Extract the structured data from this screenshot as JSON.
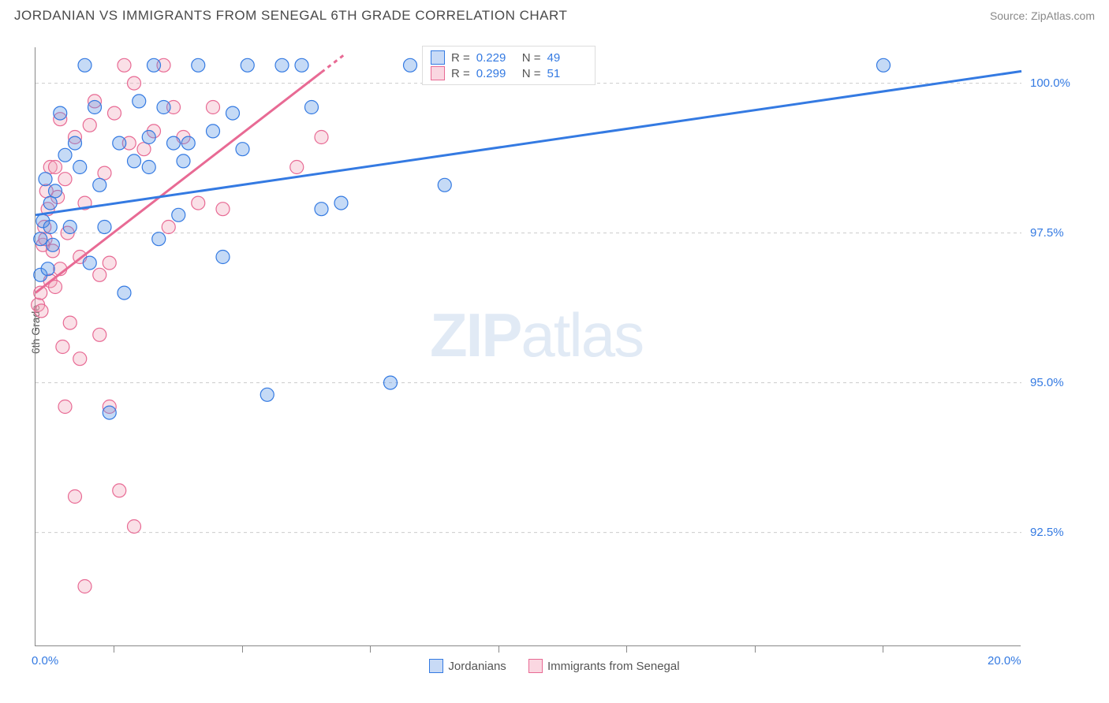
{
  "header": {
    "title": "JORDANIAN VS IMMIGRANTS FROM SENEGAL 6TH GRADE CORRELATION CHART",
    "source": "Source: ZipAtlas.com"
  },
  "watermark": {
    "left": "ZIP",
    "right": "atlas"
  },
  "chart": {
    "type": "scatter",
    "ylabel": "6th Grade",
    "background_color": "#ffffff",
    "grid_color": "#cccccc",
    "axis_color": "#888888",
    "xlim": [
      0,
      20
    ],
    "ylim": [
      90.6,
      100.6
    ],
    "yticks": [
      {
        "value": 92.5,
        "label": "92.5%"
      },
      {
        "value": 95.0,
        "label": "95.0%"
      },
      {
        "value": 97.5,
        "label": "97.5%"
      },
      {
        "value": 100.0,
        "label": "100.0%"
      }
    ],
    "xticks_lines": [
      1.6,
      4.2,
      6.8,
      9.4,
      12.0,
      14.6,
      17.2
    ],
    "xtick_labels": [
      {
        "value": 0.0,
        "label": "0.0%"
      },
      {
        "value": 20.0,
        "label": "20.0%"
      }
    ],
    "marker_radius": 8.5,
    "marker_fill_opacity": 0.35,
    "marker_stroke_width": 1.2,
    "series": {
      "jordanians": {
        "label": "Jordanians",
        "color": "#5a95e6",
        "stroke": "#347ae2",
        "R": "0.229",
        "N": "49",
        "regression": {
          "x1": 0,
          "y1": 97.8,
          "x2": 20,
          "y2": 100.2,
          "width": 3
        },
        "points": [
          [
            0.1,
            97.4
          ],
          [
            0.1,
            96.8
          ],
          [
            0.15,
            97.7
          ],
          [
            0.2,
            98.4
          ],
          [
            0.25,
            96.9
          ],
          [
            0.3,
            97.6
          ],
          [
            0.3,
            98.0
          ],
          [
            0.35,
            97.3
          ],
          [
            0.4,
            98.2
          ],
          [
            0.5,
            99.5
          ],
          [
            0.6,
            98.8
          ],
          [
            0.7,
            97.6
          ],
          [
            0.8,
            99.0
          ],
          [
            0.9,
            98.6
          ],
          [
            1.0,
            100.3
          ],
          [
            1.1,
            97.0
          ],
          [
            1.2,
            99.6
          ],
          [
            1.3,
            98.3
          ],
          [
            1.4,
            97.6
          ],
          [
            1.5,
            94.5
          ],
          [
            1.7,
            99.0
          ],
          [
            1.8,
            96.5
          ],
          [
            2.0,
            98.7
          ],
          [
            2.1,
            99.7
          ],
          [
            2.3,
            99.1
          ],
          [
            2.3,
            98.6
          ],
          [
            2.4,
            100.3
          ],
          [
            2.5,
            97.4
          ],
          [
            2.6,
            99.6
          ],
          [
            2.8,
            99.0
          ],
          [
            2.9,
            97.8
          ],
          [
            3.0,
            98.7
          ],
          [
            3.1,
            99.0
          ],
          [
            3.3,
            100.3
          ],
          [
            3.6,
            99.2
          ],
          [
            3.8,
            97.1
          ],
          [
            4.0,
            99.5
          ],
          [
            4.2,
            98.9
          ],
          [
            4.3,
            100.3
          ],
          [
            4.7,
            94.8
          ],
          [
            5.0,
            100.3
          ],
          [
            5.4,
            100.3
          ],
          [
            5.6,
            99.6
          ],
          [
            5.8,
            97.9
          ],
          [
            6.2,
            98.0
          ],
          [
            7.2,
            95.0
          ],
          [
            7.6,
            100.3
          ],
          [
            8.3,
            98.3
          ],
          [
            17.2,
            100.3
          ]
        ]
      },
      "immigrants": {
        "label": "Immigrants from Senegal",
        "color": "#f0a5bb",
        "stroke": "#e86a94",
        "R": "0.299",
        "N": "51",
        "regression": {
          "x1": 0,
          "y1": 96.5,
          "x2": 6.3,
          "y2": 100.5,
          "width": 3,
          "dash_after_x": 5.8
        },
        "points": [
          [
            0.05,
            96.3
          ],
          [
            0.1,
            96.5
          ],
          [
            0.12,
            96.2
          ],
          [
            0.15,
            97.3
          ],
          [
            0.18,
            97.6
          ],
          [
            0.2,
            97.4
          ],
          [
            0.22,
            98.2
          ],
          [
            0.25,
            97.9
          ],
          [
            0.3,
            96.7
          ],
          [
            0.3,
            98.6
          ],
          [
            0.35,
            97.2
          ],
          [
            0.4,
            96.6
          ],
          [
            0.4,
            98.6
          ],
          [
            0.45,
            98.1
          ],
          [
            0.5,
            96.9
          ],
          [
            0.5,
            99.4
          ],
          [
            0.55,
            95.6
          ],
          [
            0.6,
            94.6
          ],
          [
            0.6,
            98.4
          ],
          [
            0.65,
            97.5
          ],
          [
            0.7,
            96.0
          ],
          [
            0.8,
            93.1
          ],
          [
            0.8,
            99.1
          ],
          [
            0.9,
            97.1
          ],
          [
            0.9,
            95.4
          ],
          [
            1.0,
            91.6
          ],
          [
            1.0,
            98.0
          ],
          [
            1.1,
            99.3
          ],
          [
            1.2,
            99.7
          ],
          [
            1.3,
            96.8
          ],
          [
            1.3,
            95.8
          ],
          [
            1.4,
            98.5
          ],
          [
            1.5,
            94.6
          ],
          [
            1.5,
            97.0
          ],
          [
            1.6,
            99.5
          ],
          [
            1.7,
            93.2
          ],
          [
            1.8,
            100.3
          ],
          [
            1.9,
            99.0
          ],
          [
            2.0,
            92.6
          ],
          [
            2.0,
            100.0
          ],
          [
            2.2,
            98.9
          ],
          [
            2.4,
            99.2
          ],
          [
            2.6,
            100.3
          ],
          [
            2.7,
            97.6
          ],
          [
            2.8,
            99.6
          ],
          [
            3.0,
            99.1
          ],
          [
            3.3,
            98.0
          ],
          [
            3.6,
            99.6
          ],
          [
            3.8,
            97.9
          ],
          [
            5.3,
            98.6
          ],
          [
            5.8,
            99.1
          ]
        ]
      }
    },
    "legend_rn_labels": {
      "R": "R =",
      "N": "N ="
    }
  }
}
